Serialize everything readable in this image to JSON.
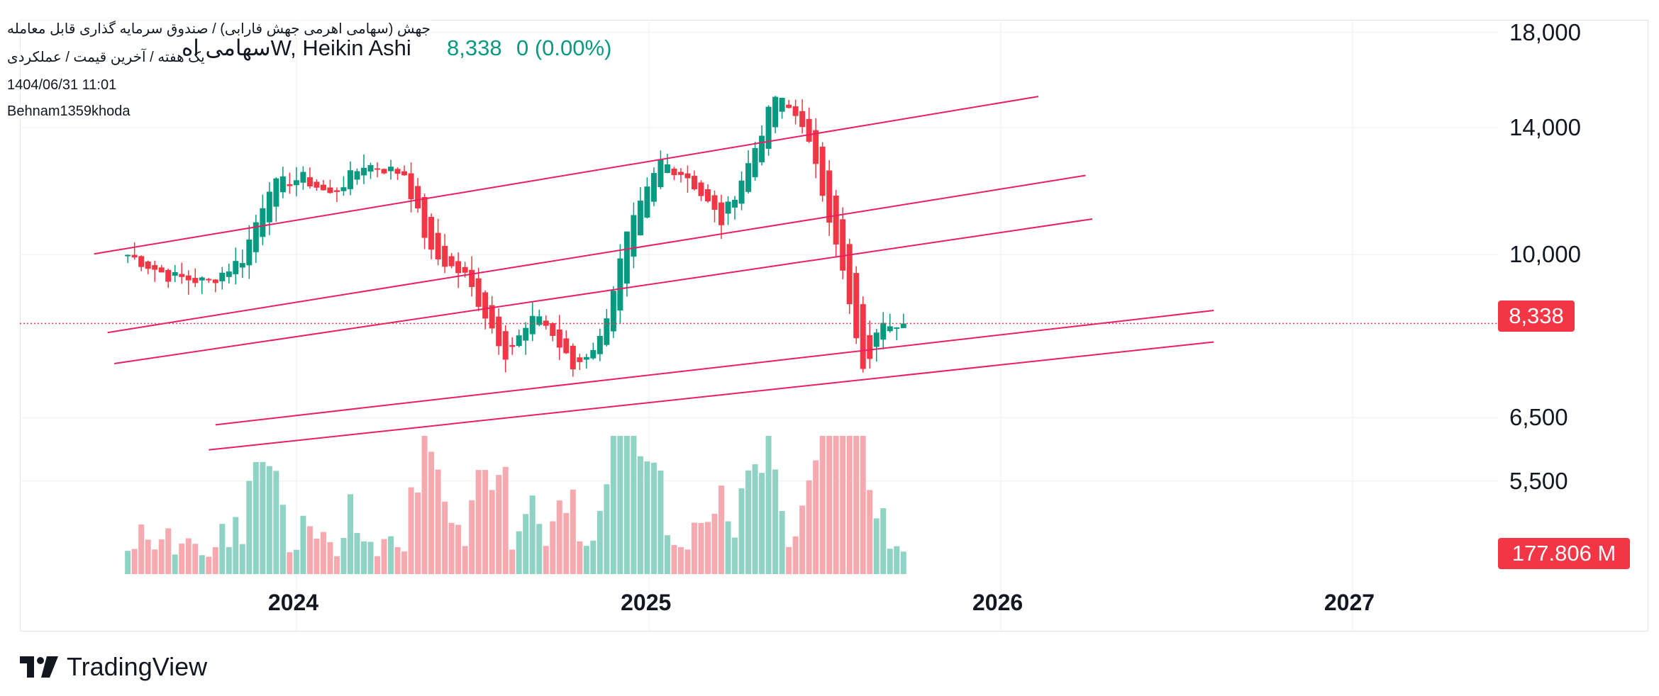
{
  "legend": {
    "symbol": "سهامی اهW, Heikin Ashi",
    "price": "8,338",
    "change": "0 (0.00%)"
  },
  "watermark": {
    "line1": "جهش (سهامی اهرمی جهش فارابی) / صندوق سرمایه گذاری قابل معامله",
    "line2": "یک هفته / آخرین قیمت / عملکردی",
    "line3": "1404/06/31 11:01",
    "line4": "Behnam1359khoda"
  },
  "colors": {
    "up": "#089981",
    "down": "#f23645",
    "up_volume": "#8fd3c4",
    "down_volume": "#f7a9b0",
    "trendline": "#e91e63",
    "grid": "#f0f3fa"
  },
  "price_tag": "8,338",
  "volume_tag": "177.806 M",
  "branding": {
    "name": "TradingView"
  },
  "chart_data": {
    "type": "candlestick",
    "style": "Heikin Ashi",
    "interval": "1W",
    "y_scale": "log",
    "ylim": [
      4300,
      18600
    ],
    "y_ticks": [
      {
        "value": 18000,
        "label": "18,000"
      },
      {
        "value": 14000,
        "label": "14,000"
      },
      {
        "value": 10000,
        "label": "10,000"
      },
      {
        "value": 6500,
        "label": "6,500"
      },
      {
        "value": 5500,
        "label": "5,500"
      }
    ],
    "x_ticks": [
      "2024",
      "2025",
      "2026",
      "2027"
    ],
    "xlim": [
      "2023-03-20",
      "2027-06-01"
    ],
    "last_price": 8338,
    "last_volume": "177.806 M",
    "anchors": [
      {
        "date": "2023-07-10",
        "price": 10000
      },
      {
        "date": "2023-08-21",
        "price": 9450
      },
      {
        "date": "2023-10-02",
        "price": 9300
      },
      {
        "date": "2023-11-06",
        "price": 9900
      },
      {
        "date": "2023-12-04",
        "price": 12000
      },
      {
        "date": "2024-01-08",
        "price": 12250
      },
      {
        "date": "2024-02-05",
        "price": 11700
      },
      {
        "date": "2024-03-11",
        "price": 12700
      },
      {
        "date": "2024-04-22",
        "price": 12400
      },
      {
        "date": "2024-05-20",
        "price": 10000
      },
      {
        "date": "2024-06-24",
        "price": 9450
      },
      {
        "date": "2024-08-05",
        "price": 7700
      },
      {
        "date": "2024-09-09",
        "price": 8550
      },
      {
        "date": "2024-10-14",
        "price": 7400
      },
      {
        "date": "2024-11-11",
        "price": 8000
      },
      {
        "date": "2024-12-09",
        "price": 10500
      },
      {
        "date": "2025-01-13",
        "price": 12800
      },
      {
        "date": "2025-02-10",
        "price": 12300
      },
      {
        "date": "2025-03-17",
        "price": 10900
      },
      {
        "date": "2025-04-14",
        "price": 12700
      },
      {
        "date": "2025-05-12",
        "price": 15200
      },
      {
        "date": "2025-06-09",
        "price": 14200
      },
      {
        "date": "2025-07-14",
        "price": 10400
      },
      {
        "date": "2025-08-11",
        "price": 7300
      },
      {
        "date": "2025-09-01",
        "price": 8450
      },
      {
        "date": "2025-09-22",
        "price": 8338
      }
    ],
    "trendlines": [
      {
        "start": {
          "date": "2023-06-05",
          "price": 10020
        },
        "end": {
          "date": "2026-02-09",
          "price": 15190
        }
      },
      {
        "start": {
          "date": "2023-06-19",
          "price": 8140
        },
        "end": {
          "date": "2026-03-30",
          "price": 12330
        }
      },
      {
        "start": {
          "date": "2023-06-26",
          "price": 7500
        },
        "end": {
          "date": "2026-04-06",
          "price": 10990
        }
      },
      {
        "start": {
          "date": "2023-10-09",
          "price": 6380
        },
        "end": {
          "date": "2026-08-10",
          "price": 8630
        }
      },
      {
        "start": {
          "date": "2023-10-02",
          "price": 5970
        },
        "end": {
          "date": "2026-08-10",
          "price": 7940
        }
      }
    ]
  }
}
